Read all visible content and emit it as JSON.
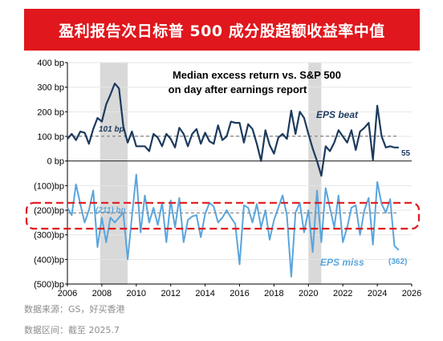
{
  "header": {
    "title": "盈利报告次日标普 500 成分股超额收益率中值"
  },
  "footer": {
    "source": "数据来源：GS，好买香港",
    "range": "数据区间：截至 2025.7"
  },
  "chart_data": {
    "type": "line",
    "title": "Median excess return vs. S&P 500",
    "subtitle": "on day after earnings report",
    "ylim": [
      -500,
      400
    ],
    "xlim": [
      2006,
      2026
    ],
    "y_ticks": [
      400,
      300,
      200,
      100,
      0,
      -100,
      -200,
      -300,
      -400,
      -500
    ],
    "y_tick_labels": [
      "400 bp",
      "300 bp",
      "200 bp",
      "100 bp",
      "0 bp",
      "(100)bp",
      "(200)bp",
      "(300)bp",
      "(400)bp",
      "(500)bp"
    ],
    "x_ticks": [
      2006,
      2008,
      2010,
      2012,
      2014,
      2016,
      2018,
      2020,
      2022,
      2024,
      2026
    ],
    "recession_shading": [
      [
        2007.9,
        2009.5
      ],
      [
        2020.0,
        2020.75
      ]
    ],
    "colors": {
      "beat": "#1c3a5e",
      "miss": "#5aa5dc",
      "average": "#8c8c8c",
      "highlight": "#e0171c",
      "shade": "#d9d9d9"
    },
    "series": [
      {
        "name": "EPS beat",
        "average": 101,
        "average_label": "101 bp",
        "last_label": "55",
        "x": [
          2006.0,
          2006.25,
          2006.5,
          2006.75,
          2007.0,
          2007.25,
          2007.5,
          2007.75,
          2008.0,
          2008.25,
          2008.5,
          2008.75,
          2009.0,
          2009.25,
          2009.5,
          2009.75,
          2010.0,
          2010.25,
          2010.5,
          2010.75,
          2011.0,
          2011.25,
          2011.5,
          2011.75,
          2012.0,
          2012.25,
          2012.5,
          2012.75,
          2013.0,
          2013.25,
          2013.5,
          2013.75,
          2014.0,
          2014.25,
          2014.5,
          2014.75,
          2015.0,
          2015.25,
          2015.5,
          2015.75,
          2016.0,
          2016.25,
          2016.5,
          2016.75,
          2017.0,
          2017.25,
          2017.5,
          2017.75,
          2018.0,
          2018.25,
          2018.5,
          2018.75,
          2019.0,
          2019.25,
          2019.5,
          2019.75,
          2020.0,
          2020.25,
          2020.5,
          2020.75,
          2021.0,
          2021.25,
          2021.5,
          2021.75,
          2022.0,
          2022.25,
          2022.5,
          2022.75,
          2023.0,
          2023.25,
          2023.5,
          2023.75,
          2024.0,
          2024.25,
          2024.5,
          2024.75,
          2025.0,
          2025.25
        ],
        "values": [
          90,
          110,
          85,
          120,
          115,
          70,
          130,
          175,
          160,
          230,
          270,
          315,
          295,
          140,
          75,
          120,
          60,
          60,
          60,
          40,
          110,
          95,
          60,
          110,
          90,
          55,
          135,
          110,
          60,
          110,
          130,
          70,
          115,
          80,
          70,
          145,
          85,
          100,
          160,
          155,
          155,
          75,
          150,
          130,
          70,
          0,
          125,
          65,
          30,
          95,
          110,
          90,
          205,
          110,
          200,
          175,
          110,
          50,
          0,
          -60,
          60,
          40,
          75,
          125,
          100,
          75,
          125,
          45,
          120,
          135,
          155,
          5,
          225,
          100,
          55,
          60,
          55,
          55
        ]
      },
      {
        "name": "EPS miss",
        "average": -211,
        "average_label": "(211) bp",
        "last_label": "(362)",
        "x": [
          2006.0,
          2006.25,
          2006.5,
          2006.75,
          2007.0,
          2007.25,
          2007.5,
          2007.75,
          2008.0,
          2008.25,
          2008.5,
          2008.75,
          2009.0,
          2009.25,
          2009.5,
          2009.75,
          2010.0,
          2010.25,
          2010.5,
          2010.75,
          2011.0,
          2011.25,
          2011.5,
          2011.75,
          2012.0,
          2012.25,
          2012.5,
          2012.75,
          2013.0,
          2013.25,
          2013.5,
          2013.75,
          2014.0,
          2014.25,
          2014.5,
          2014.75,
          2015.0,
          2015.25,
          2015.5,
          2015.75,
          2016.0,
          2016.25,
          2016.5,
          2016.75,
          2017.0,
          2017.25,
          2017.5,
          2017.75,
          2018.0,
          2018.25,
          2018.5,
          2018.75,
          2019.0,
          2019.25,
          2019.5,
          2019.75,
          2020.0,
          2020.25,
          2020.5,
          2020.75,
          2021.0,
          2021.25,
          2021.5,
          2021.75,
          2022.0,
          2022.25,
          2022.5,
          2022.75,
          2023.0,
          2023.25,
          2023.5,
          2023.75,
          2024.0,
          2024.25,
          2024.5,
          2024.75,
          2025.0,
          2025.25
        ],
        "values": [
          -190,
          -220,
          -95,
          -175,
          -250,
          -200,
          -120,
          -350,
          -230,
          -330,
          -230,
          -250,
          -230,
          -210,
          -400,
          -225,
          -55,
          -290,
          -140,
          -250,
          -190,
          -260,
          -170,
          -330,
          -160,
          -270,
          -150,
          -330,
          -240,
          -225,
          -220,
          -310,
          -215,
          -170,
          -185,
          -250,
          -230,
          -200,
          -230,
          -255,
          -420,
          -180,
          -190,
          -250,
          -175,
          -270,
          -200,
          -320,
          -240,
          -190,
          -140,
          -220,
          -470,
          -210,
          -170,
          -290,
          -200,
          -370,
          -120,
          -330,
          -110,
          -190,
          -270,
          -140,
          -330,
          -270,
          -190,
          -180,
          -300,
          -200,
          -150,
          -340,
          -85,
          -175,
          -210,
          -155,
          -345,
          -362
        ]
      }
    ],
    "annotations": [
      "EPS beat",
      "EPS miss"
    ]
  }
}
